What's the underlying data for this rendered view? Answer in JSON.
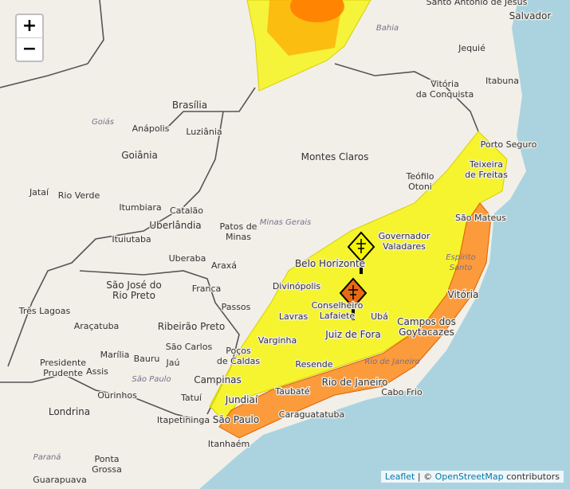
{
  "zoom_in": "+",
  "zoom_out": "−",
  "attribution": {
    "leaflet": "Leaflet",
    "separator": "|",
    "copyright": "©",
    "osm": "OpenStreetMap",
    "rest": "contributors"
  },
  "places": [
    {
      "lines": [
        "Santo Antônio de Jesus"
      ]
    },
    {
      "lines": [
        "Salvador"
      ]
    },
    {
      "lines": [
        "Bahia"
      ]
    },
    {
      "lines": [
        "Jequié"
      ]
    },
    {
      "lines": [
        "Vitória",
        "da Conquista"
      ]
    },
    {
      "lines": [
        "Itabuna"
      ]
    },
    {
      "lines": [
        "Brasília"
      ]
    },
    {
      "lines": [
        "Goiás"
      ]
    },
    {
      "lines": [
        "Anápolis"
      ]
    },
    {
      "lines": [
        "Luziânia"
      ]
    },
    {
      "lines": [
        "Goiânia"
      ]
    },
    {
      "lines": [
        "Montes Claros"
      ]
    },
    {
      "lines": [
        "Porto Seguro"
      ]
    },
    {
      "lines": [
        "Teixeira",
        "de Freitas"
      ]
    },
    {
      "lines": [
        "Teófilo",
        "Otoni"
      ]
    },
    {
      "lines": [
        "Jataí"
      ]
    },
    {
      "lines": [
        "Rio Verde"
      ]
    },
    {
      "lines": [
        "Itumbiara"
      ]
    },
    {
      "lines": [
        "Catalão"
      ]
    },
    {
      "lines": [
        "Uberlândia"
      ]
    },
    {
      "lines": [
        "Patos de",
        "Minas"
      ]
    },
    {
      "lines": [
        "Minas Gerais"
      ]
    },
    {
      "lines": [
        "Ituiutaba"
      ]
    },
    {
      "lines": [
        "Governador",
        "Valadares"
      ]
    },
    {
      "lines": [
        "Uberaba"
      ]
    },
    {
      "lines": [
        "Araxá"
      ]
    },
    {
      "lines": [
        "Belo Horizonte"
      ]
    },
    {
      "lines": [
        "São Mateus"
      ]
    },
    {
      "lines": [
        "Espírito",
        "Santo"
      ]
    },
    {
      "lines": [
        "São José do",
        "Rio Preto"
      ]
    },
    {
      "lines": [
        "Franca"
      ]
    },
    {
      "lines": [
        "Divinópolis"
      ]
    },
    {
      "lines": [
        "Conselheiro",
        "Lafaiete"
      ]
    },
    {
      "lines": [
        "Vitória"
      ]
    },
    {
      "lines": [
        "Três Lagoas"
      ]
    },
    {
      "lines": [
        "Passos"
      ]
    },
    {
      "lines": [
        "Lavras"
      ]
    },
    {
      "lines": [
        "Ubá"
      ]
    },
    {
      "lines": [
        "Araçatuba"
      ]
    },
    {
      "lines": [
        "Ribeirão Preto"
      ]
    },
    {
      "lines": [
        "Campos dos",
        "Goytacazes"
      ]
    },
    {
      "lines": [
        "Varginha"
      ]
    },
    {
      "lines": [
        "Juiz de Fora"
      ]
    },
    {
      "lines": [
        "São Carlos"
      ]
    },
    {
      "lines": [
        "Poços",
        "de Caldas"
      ]
    },
    {
      "lines": [
        "Marília"
      ]
    },
    {
      "lines": [
        "Bauru"
      ]
    },
    {
      "lines": [
        "Jaú"
      ]
    },
    {
      "lines": [
        "Presidente",
        "Prudente"
      ]
    },
    {
      "lines": [
        "Assis"
      ]
    },
    {
      "lines": [
        "São Paulo"
      ]
    },
    {
      "lines": [
        "Resende"
      ]
    },
    {
      "lines": [
        "Rio de Janeiro"
      ]
    },
    {
      "lines": [
        "Rio de Janeiro"
      ]
    },
    {
      "lines": [
        "Campinas"
      ]
    },
    {
      "lines": [
        "Ourinhos"
      ]
    },
    {
      "lines": [
        "Tatuí"
      ]
    },
    {
      "lines": [
        "Jundiaí"
      ]
    },
    {
      "lines": [
        "Taubaté"
      ]
    },
    {
      "lines": [
        "Cabo Frio"
      ]
    },
    {
      "lines": [
        "Londrina"
      ]
    },
    {
      "lines": [
        "Itapetininga"
      ]
    },
    {
      "lines": [
        "São Paulo"
      ]
    },
    {
      "lines": [
        "Caraguatatuba"
      ]
    },
    {
      "lines": [
        "Itanhaém"
      ]
    },
    {
      "lines": [
        "Paraná"
      ]
    },
    {
      "lines": [
        "Ponta",
        "Grossa"
      ]
    },
    {
      "lines": [
        "Guarapuava"
      ]
    }
  ]
}
